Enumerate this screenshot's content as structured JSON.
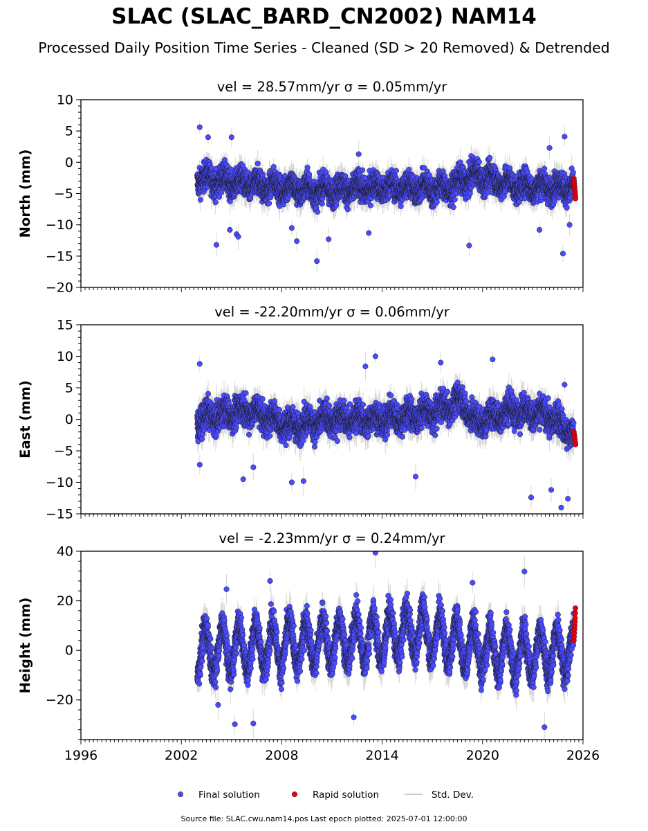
{
  "title": "SLAC (SLAC_BARD_CN2002) NAM14",
  "subtitle": "Processed Daily Position Time Series - Cleaned (SD > 20 Removed) & Detrended",
  "footer": "Source file: SLAC.cwu.nam14.pos  Last epoch plotted: 2025-07-01 12:00:00",
  "colors": {
    "final": "#4a4aff",
    "rapid": "#e8000b",
    "stddev": "#b8b8b8",
    "marker_edge": "#1a1a1a"
  },
  "legend": {
    "placement": "bottom-center",
    "items": [
      {
        "label": "Final solution",
        "marker": "circle",
        "color": "#4a4aff"
      },
      {
        "label": "Rapid solution",
        "marker": "circle",
        "color": "#e8000b"
      },
      {
        "label": "Std. Dev.",
        "marker": "line",
        "color": "#b8b8b8"
      }
    ]
  },
  "chart_data": [
    {
      "type": "scatter",
      "component": "North",
      "title": "vel = 28.57mm/yr   σ = 0.05mm/yr",
      "ylabel": "North (mm)",
      "xlim": [
        1996,
        2026
      ],
      "ylim": [
        -20,
        10
      ],
      "xticks": [
        1996,
        2002,
        2008,
        2014,
        2020,
        2026
      ],
      "yticks": [
        -20,
        -15,
        -10,
        -5,
        0,
        5,
        10
      ],
      "show_xticklabels": false,
      "grid": false,
      "series": [
        {
          "name": "Final solution",
          "color": "#4a4aff",
          "x_range": [
            2002.95,
            2025.45
          ],
          "mean_trend": [
            [
              2003.0,
              -2.5
            ],
            [
              2006.0,
              -3.5
            ],
            [
              2010.0,
              -4.5
            ],
            [
              2014.0,
              -4.0
            ],
            [
              2018.0,
              -4.2
            ],
            [
              2019.5,
              -2.0
            ],
            [
              2022.0,
              -3.8
            ],
            [
              2025.45,
              -4.0
            ]
          ],
          "scatter_sd": 1.5,
          "outliers": [
            [
              2003.1,
              5.6
            ],
            [
              2003.6,
              4.0
            ],
            [
              2004.1,
              -13.2
            ],
            [
              2004.9,
              -10.8
            ],
            [
              2005.0,
              4.0
            ],
            [
              2005.3,
              -11.5
            ],
            [
              2005.4,
              -11.9
            ],
            [
              2008.6,
              -10.5
            ],
            [
              2008.9,
              -12.6
            ],
            [
              2010.1,
              -15.8
            ],
            [
              2010.8,
              -12.3
            ],
            [
              2012.6,
              1.3
            ],
            [
              2013.2,
              -11.3
            ],
            [
              2019.2,
              -13.3
            ],
            [
              2023.4,
              -10.8
            ],
            [
              2024.0,
              2.3
            ],
            [
              2024.8,
              -14.6
            ],
            [
              2024.9,
              4.1
            ],
            [
              2025.2,
              -10.0
            ]
          ]
        },
        {
          "name": "Rapid solution",
          "color": "#e8000b",
          "x_range": [
            2025.45,
            2025.55
          ],
          "values": [
            -2.6,
            -3.0,
            -3.4,
            -3.8,
            -4.2,
            -4.6,
            -5.0,
            -5.4,
            -5.8
          ]
        },
        {
          "name": "Std. Dev.",
          "color": "#b8b8b8",
          "typical_sd": 1.5
        }
      ]
    },
    {
      "type": "scatter",
      "component": "East",
      "title": "vel = -22.20mm/yr   σ = 0.06mm/yr",
      "ylabel": "East (mm)",
      "xlim": [
        1996,
        2026
      ],
      "ylim": [
        -15,
        15
      ],
      "xticks": [
        1996,
        2002,
        2008,
        2014,
        2020,
        2026
      ],
      "yticks": [
        -15,
        -10,
        -5,
        0,
        5,
        10,
        15
      ],
      "show_xticklabels": false,
      "grid": false,
      "series": [
        {
          "name": "Final solution",
          "color": "#4a4aff",
          "x_range": [
            2002.95,
            2025.45
          ],
          "mean_trend": [
            [
              2003.0,
              0.0
            ],
            [
              2006.0,
              1.5
            ],
            [
              2008.5,
              -1.0
            ],
            [
              2011.0,
              0.0
            ],
            [
              2014.0,
              0.0
            ],
            [
              2017.0,
              1.0
            ],
            [
              2018.8,
              3.0
            ],
            [
              2019.5,
              -0.5
            ],
            [
              2022.0,
              1.5
            ],
            [
              2024.0,
              0.5
            ],
            [
              2025.45,
              -2.5
            ]
          ],
          "scatter_sd": 1.6,
          "outliers": [
            [
              2003.1,
              8.8
            ],
            [
              2003.1,
              -7.2
            ],
            [
              2005.7,
              -9.5
            ],
            [
              2006.3,
              -7.6
            ],
            [
              2008.6,
              -10.0
            ],
            [
              2009.3,
              -9.8
            ],
            [
              2013.0,
              8.4
            ],
            [
              2013.6,
              10.0
            ],
            [
              2016.0,
              -9.1
            ],
            [
              2017.5,
              9.0
            ],
            [
              2020.6,
              9.5
            ],
            [
              2022.9,
              -12.4
            ],
            [
              2024.1,
              -11.2
            ],
            [
              2024.7,
              -14.0
            ],
            [
              2024.9,
              5.5
            ],
            [
              2025.1,
              -12.6
            ]
          ]
        },
        {
          "name": "Rapid solution",
          "color": "#e8000b",
          "x_range": [
            2025.45,
            2025.55
          ],
          "values": [
            -2.0,
            -2.4,
            -2.8,
            -3.2,
            -3.6,
            -4.0
          ]
        },
        {
          "name": "Std. Dev.",
          "color": "#b8b8b8",
          "typical_sd": 1.6
        }
      ]
    },
    {
      "type": "scatter",
      "component": "Height",
      "title": "vel = -2.23mm/yr   σ = 0.24mm/yr",
      "ylabel": "Height (mm)",
      "xlim": [
        1996,
        2026
      ],
      "ylim": [
        -36,
        40
      ],
      "xticks": [
        1996,
        2002,
        2008,
        2014,
        2020,
        2026
      ],
      "xticklabels": [
        "1996",
        "2002",
        "2008",
        "2014",
        "2020",
        "2026"
      ],
      "yticks": [
        -20,
        0,
        20,
        40
      ],
      "show_xticklabels": true,
      "grid": false,
      "series": [
        {
          "name": "Final solution",
          "color": "#4a4aff",
          "x_range": [
            2002.95,
            2025.45
          ],
          "mean_trend": [
            [
              2003.0,
              0.0
            ],
            [
              2014.0,
              5.0
            ],
            [
              2016.0,
              8.0
            ],
            [
              2019.0,
              2.0
            ],
            [
              2022.0,
              -2.0
            ],
            [
              2025.45,
              0.0
            ]
          ],
          "seasonal_amplitude": 9,
          "scatter_sd": 4.5,
          "outliers": [
            [
              2004.2,
              -22.0
            ],
            [
              2004.7,
              24.7
            ],
            [
              2005.2,
              -29.8
            ],
            [
              2006.3,
              -29.5
            ],
            [
              2007.3,
              28.0
            ],
            [
              2013.6,
              39.4
            ],
            [
              2019.4,
              27.3
            ],
            [
              2022.5,
              31.8
            ],
            [
              2023.7,
              -31.0
            ],
            [
              2012.3,
              -27.0
            ]
          ]
        },
        {
          "name": "Rapid solution",
          "color": "#e8000b",
          "x_range": [
            2025.45,
            2025.55
          ],
          "values": [
            4.0,
            5.5,
            7.0,
            8.5,
            10.0,
            11.5,
            13.0,
            15.0,
            17.0
          ]
        },
        {
          "name": "Std. Dev.",
          "color": "#b8b8b8",
          "typical_sd": 4.5
        }
      ]
    }
  ]
}
